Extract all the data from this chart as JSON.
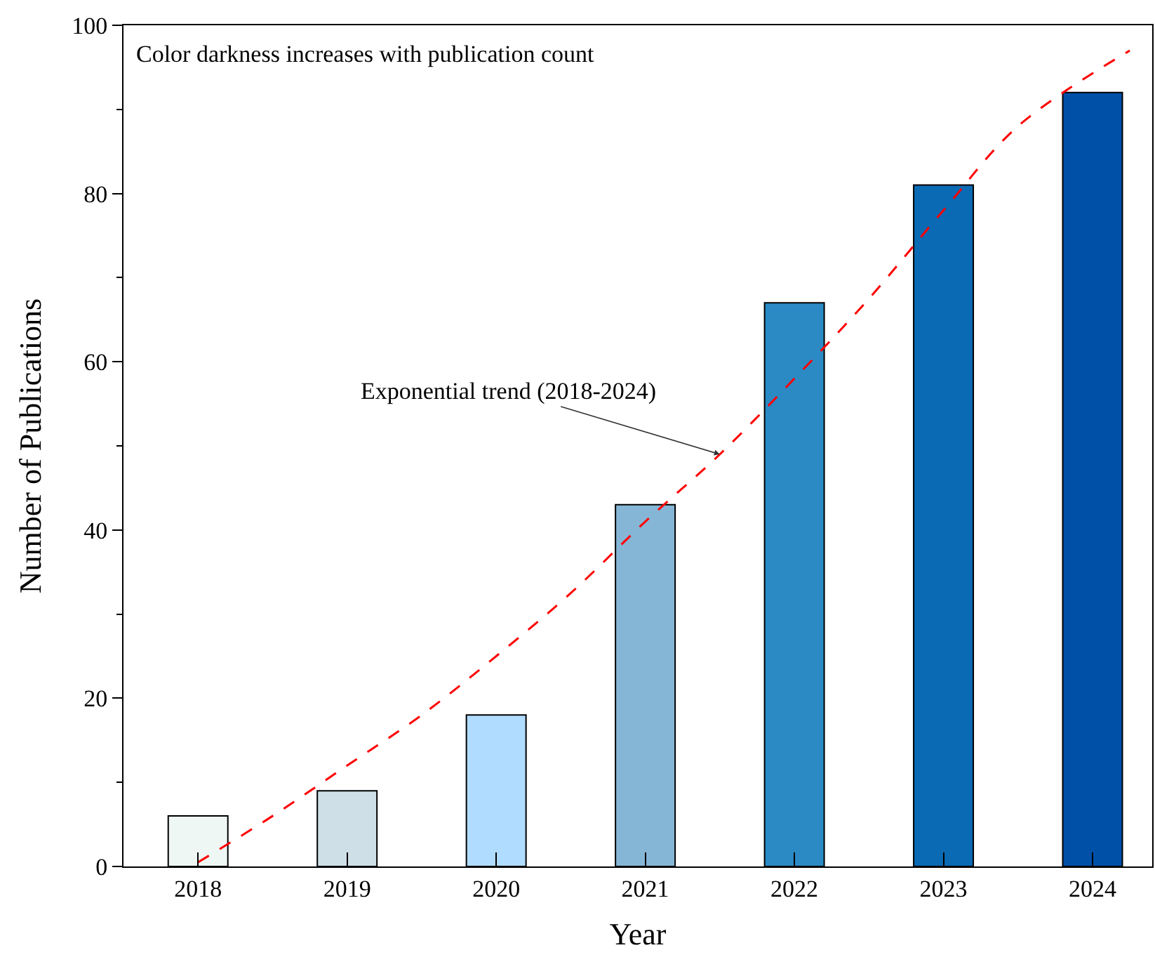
{
  "chart_data": {
    "type": "bar",
    "x": [
      2018,
      2019,
      2020,
      2021,
      2022,
      2023,
      2024
    ],
    "xlabel": "Year",
    "ylabel": "Number of Publications",
    "series": [
      {
        "colors": [
          "#eef7f3",
          "#cfdfe8",
          "#b0dcff",
          "#86b6d6",
          "#2b8ac4",
          "#0a6ab4",
          "#0050a8"
        ],
        "values": [
          6,
          9,
          18,
          43,
          67,
          81,
          92
        ]
      },
      {
        "type": "line",
        "color": "#ff0000",
        "line_style": "dashed",
        "x": [
          2018,
          2018.5,
          2019,
          2019.5,
          2020,
          2020.5,
          2021,
          2021.5,
          2022,
          2022.5,
          2023,
          2023.5,
          2024.25
        ],
        "values": [
          0.5,
          6,
          12,
          18,
          25,
          32.5,
          41,
          49,
          58,
          67.5,
          78,
          88,
          97
        ]
      }
    ],
    "xlim": [
      2017.5,
      2024.4
    ],
    "xticks": [
      2018,
      2019,
      2020,
      2021,
      2022,
      2023,
      2024
    ],
    "ylim": [
      0,
      100
    ],
    "yticks": [
      0,
      20,
      40,
      60,
      80,
      100
    ],
    "annotations": [
      "Color darkness increases with publication count",
      {
        "text": "Exponential trend (2018-2024)",
        "x": 2021.5,
        "y": 49
      }
    ]
  }
}
